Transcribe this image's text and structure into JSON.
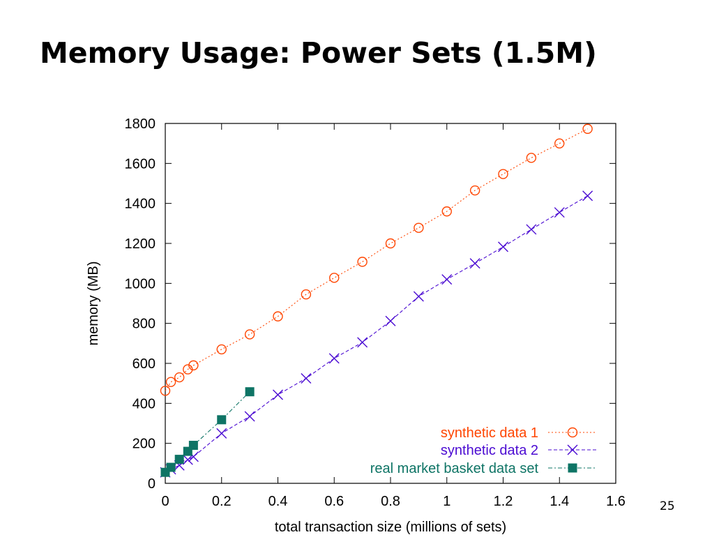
{
  "slide": {
    "title": "Memory Usage: Power Sets (1.5M)",
    "page_number": "25"
  },
  "chart_data": {
    "type": "line",
    "title": "",
    "xlabel": "total transaction size (millions of sets)",
    "ylabel": "memory (MB)",
    "xlim": [
      0,
      1.6
    ],
    "ylim": [
      0,
      1800
    ],
    "xticks": [
      0,
      0.2,
      0.4,
      0.6,
      0.8,
      1,
      1.2,
      1.4,
      1.6
    ],
    "xtick_labels": [
      "0",
      "0.2",
      "0.4",
      "0.6",
      "0.8",
      "1",
      "1.2",
      "1.4",
      "1.6"
    ],
    "yticks": [
      0,
      200,
      400,
      600,
      800,
      1000,
      1200,
      1400,
      1600,
      1800
    ],
    "ytick_labels": [
      "0",
      "200",
      "400",
      "600",
      "800",
      "1000",
      "1200",
      "1400",
      "1600",
      "1800"
    ],
    "grid": false,
    "legend_position": "bottom-right",
    "series": [
      {
        "name": "synthetic data 1",
        "color": "#ff4500",
        "marker": "open-circle",
        "line_style": "dotted",
        "x": [
          0,
          0.02,
          0.05,
          0.08,
          0.1,
          0.2,
          0.3,
          0.4,
          0.5,
          0.6,
          0.7,
          0.8,
          0.9,
          1.0,
          1.1,
          1.2,
          1.3,
          1.4,
          1.5
        ],
        "y": [
          463,
          507,
          530,
          570,
          590,
          670,
          745,
          835,
          945,
          1028,
          1108,
          1200,
          1278,
          1360,
          1465,
          1547,
          1628,
          1700,
          1773
        ]
      },
      {
        "name": "synthetic data 2",
        "color": "#4b0bd2",
        "marker": "x",
        "line_style": "dashed",
        "x": [
          0,
          0.02,
          0.05,
          0.08,
          0.1,
          0.2,
          0.3,
          0.4,
          0.5,
          0.6,
          0.7,
          0.8,
          0.9,
          1.0,
          1.1,
          1.2,
          1.3,
          1.4,
          1.5
        ],
        "y": [
          55,
          70,
          90,
          118,
          133,
          250,
          335,
          443,
          525,
          625,
          705,
          812,
          935,
          1020,
          1100,
          1183,
          1270,
          1355,
          1438
        ]
      },
      {
        "name": "real market basket data set",
        "color": "#0e7465",
        "marker": "filled-square",
        "line_style": "dash-dot",
        "x": [
          0,
          0.02,
          0.05,
          0.08,
          0.1,
          0.2,
          0.3
        ],
        "y": [
          55,
          80,
          120,
          160,
          190,
          318,
          458
        ]
      }
    ]
  }
}
